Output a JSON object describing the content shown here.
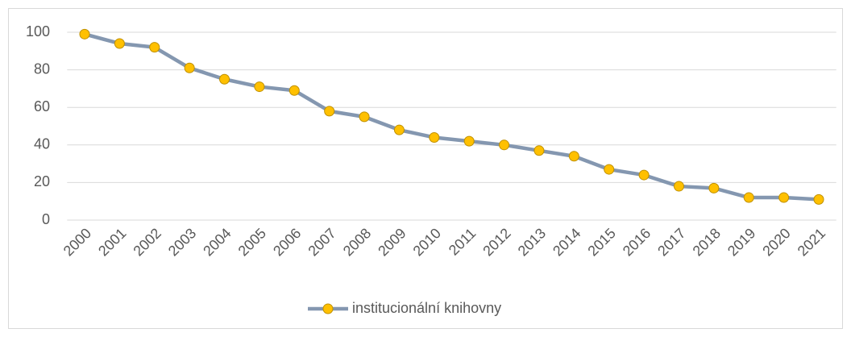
{
  "chart_data": {
    "type": "line",
    "categories": [
      "2000",
      "2001",
      "2002",
      "2003",
      "2004",
      "2005",
      "2006",
      "2007",
      "2008",
      "2009",
      "2010",
      "2011",
      "2012",
      "2013",
      "2014",
      "2015",
      "2016",
      "2017",
      "2018",
      "2019",
      "2020",
      "2021"
    ],
    "series": [
      {
        "name": "institucionální knihovny",
        "color": "#8497b0",
        "marker_color": "#ffc000",
        "values": [
          99,
          94,
          92,
          81,
          75,
          71,
          69,
          58,
          55,
          48,
          44,
          42,
          40,
          37,
          34,
          27,
          24,
          18,
          17,
          12,
          12,
          11
        ]
      }
    ],
    "ylim": [
      0,
      100
    ],
    "yticks": [
      0,
      20,
      40,
      60,
      80,
      100
    ],
    "grid": true,
    "legend": "bottom"
  }
}
